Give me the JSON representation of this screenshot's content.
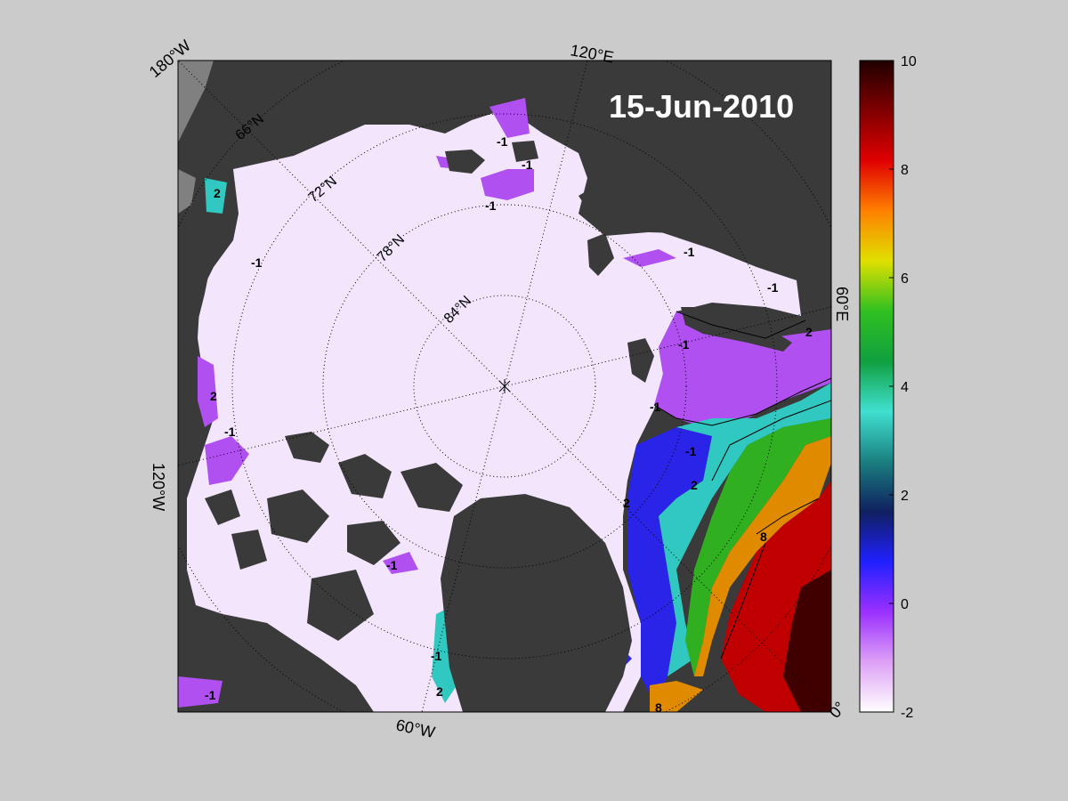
{
  "map": {
    "date": "15-Jun-2010",
    "projection": "polar-stereographic",
    "center": "north-pole",
    "longitude_labels": [
      "180°W",
      "120°E",
      "60°E",
      "0°",
      "60°W",
      "120°W"
    ],
    "latitude_labels": [
      "66°N",
      "72°N",
      "78°N",
      "84°N"
    ],
    "contour_levels": [
      -1,
      2,
      8
    ],
    "colors": {
      "land": "#3a3a3a",
      "coast_gray": "#808080",
      "ice": "#f2e4fb",
      "background": "#cbcbcb"
    }
  },
  "colorbar": {
    "min": -2,
    "max": 10,
    "ticks": [
      "10",
      "8",
      "6",
      "4",
      "2",
      "0",
      "-2"
    ],
    "colormap": [
      "#ffffff",
      "#dda0f5",
      "#9a30ff",
      "#2020ff",
      "#102060",
      "#1a8080",
      "#40e0d0",
      "#10a040",
      "#30c020",
      "#e0e000",
      "#ff8000",
      "#e00000",
      "#800000",
      "#200000"
    ]
  }
}
